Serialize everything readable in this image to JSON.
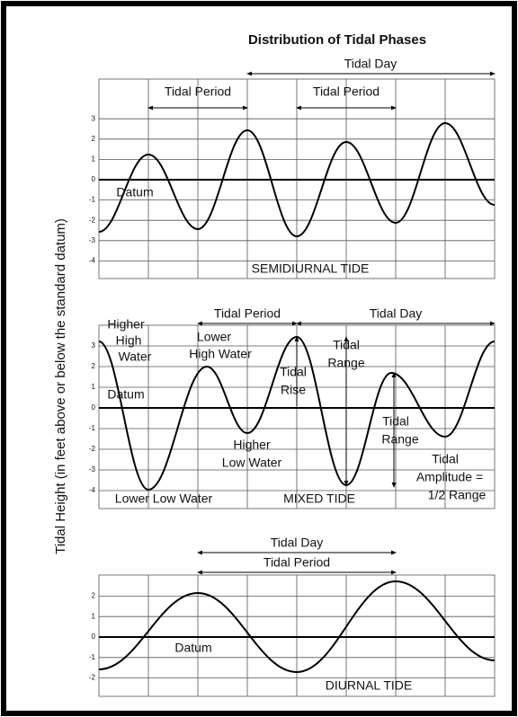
{
  "title": "Distribution of Tidal Phases",
  "y_axis_label": "Tidal Height (in feet above or below the standard datum)",
  "panels": [
    {
      "name": "SEMIDIURNAL TIDE",
      "ticks": [
        3,
        2,
        1,
        0,
        -1,
        -2,
        -3,
        -4
      ],
      "labels": [
        "Tidal Day",
        "Tidal Period",
        "Tidal Period",
        "Datum"
      ]
    },
    {
      "name": "MIXED TIDE",
      "ticks": [
        3,
        2,
        1,
        0,
        -1,
        -2,
        -3,
        -4
      ],
      "labels": [
        "Tidal Period",
        "Tidal Day",
        "Higher",
        "High",
        "Water",
        "Lower",
        "High Water",
        "Datum",
        "Tidal",
        "Rise",
        "Tidal",
        "Range",
        "Tidal",
        "Range",
        "Higher",
        "Low Water",
        "Tidal",
        "Amplitude =",
        "1/2 Range",
        "Lower Low Water"
      ]
    },
    {
      "name": "DIURNAL TIDE",
      "ticks": [
        2,
        1,
        0,
        -1,
        -2
      ],
      "labels": [
        "Tidal Day",
        "Tidal Period",
        "Datum"
      ]
    }
  ]
}
